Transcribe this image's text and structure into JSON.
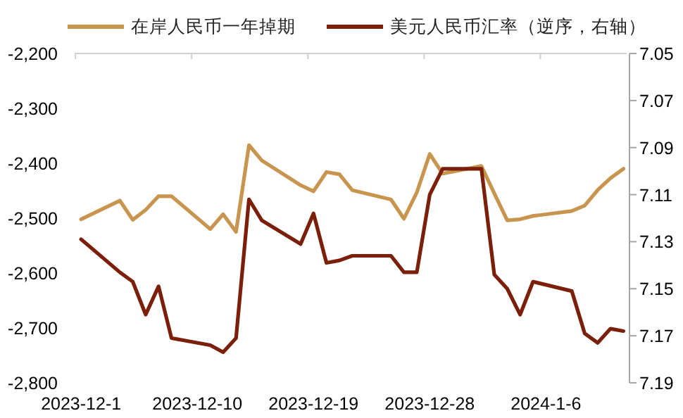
{
  "chart_data": {
    "type": "line",
    "x": [
      "2023-12-01",
      "2023-12-04",
      "2023-12-05",
      "2023-12-06",
      "2023-12-07",
      "2023-12-08",
      "2023-12-11",
      "2023-12-12",
      "2023-12-13",
      "2023-12-14",
      "2023-12-15",
      "2023-12-18",
      "2023-12-19",
      "2023-12-20",
      "2023-12-21",
      "2023-12-22",
      "2023-12-25",
      "2023-12-26",
      "2023-12-27",
      "2023-12-28",
      "2023-12-29",
      "2024-01-01",
      "2024-01-02",
      "2024-01-03",
      "2024-01-04",
      "2024-01-05",
      "2024-01-08",
      "2024-01-09",
      "2024-01-10",
      "2024-01-11",
      "2024-01-12"
    ],
    "series": [
      {
        "name": "在岸人民币一年掉期",
        "color": "#c8954f",
        "values": [
          -2502,
          -2468,
          -2503,
          -2485,
          -2460,
          -2460,
          -2520,
          -2493,
          -2525,
          -2367,
          -2395,
          -2440,
          -2451,
          -2416,
          -2420,
          -2449,
          -2466,
          -2501,
          -2453,
          -2383,
          -2419,
          -2405,
          -2455,
          -2504,
          -2502,
          -2496,
          -2487,
          -2477,
          -2449,
          -2427,
          -2410
        ]
      },
      {
        "name": "美元人民币汇率（逆序，右轴）",
        "color": "#7b1f0a",
        "axis": "y2",
        "values": [
          7.129,
          7.143,
          7.147,
          7.161,
          7.149,
          7.171,
          7.174,
          7.177,
          7.171,
          7.112,
          7.121,
          7.131,
          7.118,
          7.139,
          7.138,
          7.136,
          7.136,
          7.143,
          7.143,
          7.11,
          7.099,
          7.099,
          7.144,
          7.15,
          7.161,
          7.147,
          7.151,
          7.169,
          7.173,
          7.167,
          7.168
        ]
      }
    ],
    "xlim": [
      "2023-11-30T12:00",
      "2024-01-12T06:00"
    ],
    "xticks": [
      {
        "value": "2023-12-01",
        "label": "2023-12-1"
      },
      {
        "value": "2023-12-10",
        "label": "2023-12-10"
      },
      {
        "value": "2023-12-19",
        "label": "2023-12-19"
      },
      {
        "value": "2023-12-28",
        "label": "2023-12-28"
      },
      {
        "value": "2024-01-06",
        "label": "2024-1-6"
      }
    ],
    "ylim": [
      -2800,
      -2200
    ],
    "yticks": [
      {
        "value": -2800,
        "label": "-2,800"
      },
      {
        "value": -2700,
        "label": "-2,700"
      },
      {
        "value": -2600,
        "label": "-2,600"
      },
      {
        "value": -2500,
        "label": "-2,500"
      },
      {
        "value": -2400,
        "label": "-2,400"
      },
      {
        "value": -2300,
        "label": "-2,300"
      },
      {
        "value": -2200,
        "label": "-2,200"
      }
    ],
    "y2lim": [
      7.19,
      7.05
    ],
    "y2ticks": [
      7.05,
      7.07,
      7.09,
      7.11,
      7.13,
      7.15,
      7.17,
      7.19
    ],
    "legend": "top",
    "grid": false
  }
}
